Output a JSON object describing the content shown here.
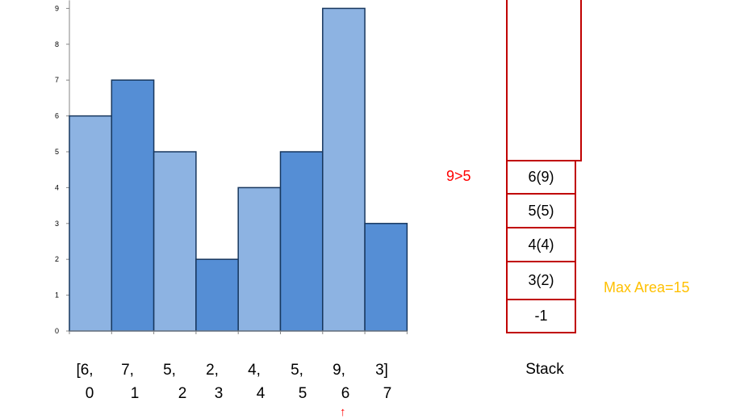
{
  "chart_data": {
    "type": "bar",
    "categories": [
      "0",
      "1",
      "2",
      "3",
      "4",
      "5",
      "6",
      "7"
    ],
    "values": [
      6,
      7,
      5,
      2,
      4,
      5,
      9,
      3
    ],
    "ylim": [
      0,
      9
    ],
    "y_ticks": [
      "0",
      "1",
      "2",
      "3",
      "4",
      "5",
      "6",
      "7",
      "8",
      "9"
    ],
    "colors": [
      "#8db3e2",
      "#558ed5",
      "#8db3e2",
      "#558ed5",
      "#8db3e2",
      "#558ed5",
      "#8db3e2",
      "#558ed5"
    ],
    "edge_color": "#17375e"
  },
  "array": {
    "values": [
      "[6,",
      "7,",
      "5,",
      "2,",
      "4,",
      "5,",
      "9,",
      "3]"
    ],
    "indices": [
      "0",
      "1",
      "2",
      "3",
      "4",
      "5",
      "6",
      "7"
    ]
  },
  "stack": {
    "label": "Stack",
    "cells": [
      "6(9)",
      "5(5)",
      "4(4)",
      "3(2)",
      "-1"
    ],
    "border_color": "#c00000"
  },
  "annotations": {
    "comparison": "9>5",
    "max_area": "Max Area=15",
    "pointer": "↑"
  }
}
